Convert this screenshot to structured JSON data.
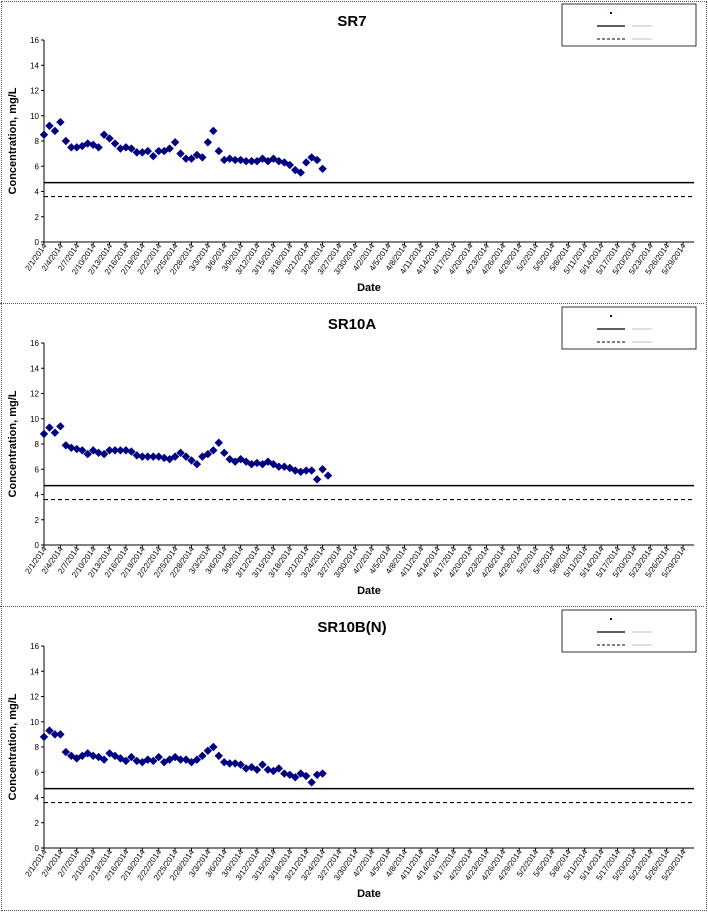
{
  "chart_data": [
    {
      "type": "scatter",
      "title": "SR7",
      "xlabel": "Date",
      "ylabel": "Concentration, mg/L",
      "ylim": [
        0,
        16
      ],
      "yticks": [
        "0",
        "2",
        "4",
        "6",
        "8",
        "10",
        "12",
        "14",
        "16"
      ],
      "xlim": [
        "2/1/2014",
        "5/31/2014"
      ],
      "x_tick_labels": [
        "2/1/2014",
        "2/4/2014",
        "2/7/2014",
        "2/10/2014",
        "2/13/2014",
        "2/16/2014",
        "2/19/2014",
        "2/22/2014",
        "2/25/2014",
        "2/28/2014",
        "3/3/2014",
        "3/6/2014",
        "3/9/2014",
        "3/12/2014",
        "3/15/2014",
        "3/18/2014",
        "3/21/2014",
        "3/24/2014",
        "3/27/2014",
        "3/30/2014",
        "4/2/2014",
        "4/5/2014",
        "4/8/2014",
        "4/11/2014",
        "4/14/2014",
        "4/17/2014",
        "4/20/2014",
        "4/23/2014",
        "4/26/2014",
        "4/29/2014",
        "5/2/2014",
        "5/5/2014",
        "5/8/2014",
        "5/11/2014",
        "5/14/2014",
        "5/17/2014",
        "5/20/2014",
        "5/23/2014",
        "5/26/2014",
        "5/29/2014"
      ],
      "grid": false,
      "legend_position": "top-right",
      "series": [
        {
          "marker": "diamond",
          "color": "#000080",
          "points": [
            {
              "x": "2/1/2014",
              "y": 8.5
            },
            {
              "x": "2/2/2014",
              "y": 9.2
            },
            {
              "x": "2/3/2014",
              "y": 8.8
            },
            {
              "x": "2/4/2014",
              "y": 9.5
            },
            {
              "x": "2/5/2014",
              "y": 8.0
            },
            {
              "x": "2/6/2014",
              "y": 7.5
            },
            {
              "x": "2/7/2014",
              "y": 7.5
            },
            {
              "x": "2/8/2014",
              "y": 7.6
            },
            {
              "x": "2/9/2014",
              "y": 7.8
            },
            {
              "x": "2/10/2014",
              "y": 7.7
            },
            {
              "x": "2/11/2014",
              "y": 7.5
            },
            {
              "x": "2/12/2014",
              "y": 8.5
            },
            {
              "x": "2/13/2014",
              "y": 8.2
            },
            {
              "x": "2/14/2014",
              "y": 7.8
            },
            {
              "x": "2/15/2014",
              "y": 7.4
            },
            {
              "x": "2/16/2014",
              "y": 7.5
            },
            {
              "x": "2/17/2014",
              "y": 7.4
            },
            {
              "x": "2/18/2014",
              "y": 7.1
            },
            {
              "x": "2/19/2014",
              "y": 7.1
            },
            {
              "x": "2/20/2014",
              "y": 7.2
            },
            {
              "x": "2/21/2014",
              "y": 6.8
            },
            {
              "x": "2/22/2014",
              "y": 7.2
            },
            {
              "x": "2/23/2014",
              "y": 7.2
            },
            {
              "x": "2/24/2014",
              "y": 7.4
            },
            {
              "x": "2/25/2014",
              "y": 7.9
            },
            {
              "x": "2/26/2014",
              "y": 7.0
            },
            {
              "x": "2/27/2014",
              "y": 6.6
            },
            {
              "x": "2/28/2014",
              "y": 6.6
            },
            {
              "x": "3/1/2014",
              "y": 6.9
            },
            {
              "x": "3/2/2014",
              "y": 6.7
            },
            {
              "x": "3/3/2014",
              "y": 7.9
            },
            {
              "x": "3/4/2014",
              "y": 8.8
            },
            {
              "x": "3/5/2014",
              "y": 7.2
            },
            {
              "x": "3/6/2014",
              "y": 6.5
            },
            {
              "x": "3/7/2014",
              "y": 6.6
            },
            {
              "x": "3/8/2014",
              "y": 6.5
            },
            {
              "x": "3/9/2014",
              "y": 6.5
            },
            {
              "x": "3/10/2014",
              "y": 6.4
            },
            {
              "x": "3/11/2014",
              "y": 6.4
            },
            {
              "x": "3/12/2014",
              "y": 6.4
            },
            {
              "x": "3/13/2014",
              "y": 6.6
            },
            {
              "x": "3/14/2014",
              "y": 6.4
            },
            {
              "x": "3/15/2014",
              "y": 6.6
            },
            {
              "x": "3/16/2014",
              "y": 6.4
            },
            {
              "x": "3/17/2014",
              "y": 6.3
            },
            {
              "x": "3/18/2014",
              "y": 6.1
            },
            {
              "x": "3/19/2014",
              "y": 5.7
            },
            {
              "x": "3/20/2014",
              "y": 5.5
            },
            {
              "x": "3/21/2014",
              "y": 6.3
            },
            {
              "x": "3/22/2014",
              "y": 6.7
            },
            {
              "x": "3/23/2014",
              "y": 6.5
            },
            {
              "x": "3/24/2014",
              "y": 5.8
            }
          ]
        }
      ],
      "reference_lines": [
        {
          "style": "solid",
          "value": 4.7
        },
        {
          "style": "dashed",
          "value": 3.6
        }
      ]
    },
    {
      "type": "scatter",
      "title": "SR10A",
      "xlabel": "Date",
      "ylabel": "Concentration, mg/L",
      "ylim": [
        0,
        16
      ],
      "yticks": [
        "0",
        "2",
        "4",
        "6",
        "8",
        "10",
        "12",
        "14",
        "16"
      ],
      "xlim": [
        "2/1/2014",
        "5/31/2014"
      ],
      "x_tick_labels": [
        "2/1/2014",
        "2/4/2014",
        "2/7/2014",
        "2/10/2014",
        "2/13/2014",
        "2/16/2014",
        "2/19/2014",
        "2/22/2014",
        "2/25/2014",
        "2/28/2014",
        "3/3/2014",
        "3/6/2014",
        "3/9/2014",
        "3/12/2014",
        "3/15/2014",
        "3/18/2014",
        "3/21/2014",
        "3/24/2014",
        "3/27/2014",
        "3/30/2014",
        "4/2/2014",
        "4/5/2014",
        "4/8/2014",
        "4/11/2014",
        "4/14/2014",
        "4/17/2014",
        "4/20/2014",
        "4/23/2014",
        "4/26/2014",
        "4/29/2014",
        "5/2/2014",
        "5/5/2014",
        "5/8/2014",
        "5/11/2014",
        "5/14/2014",
        "5/17/2014",
        "5/20/2014",
        "5/23/2014",
        "5/26/2014",
        "5/29/2014"
      ],
      "grid": false,
      "legend_position": "top-right",
      "series": [
        {
          "marker": "diamond",
          "color": "#000080",
          "points": [
            {
              "x": "2/1/2014",
              "y": 8.8
            },
            {
              "x": "2/2/2014",
              "y": 9.3
            },
            {
              "x": "2/3/2014",
              "y": 8.9
            },
            {
              "x": "2/4/2014",
              "y": 9.4
            },
            {
              "x": "2/5/2014",
              "y": 7.9
            },
            {
              "x": "2/6/2014",
              "y": 7.7
            },
            {
              "x": "2/7/2014",
              "y": 7.6
            },
            {
              "x": "2/8/2014",
              "y": 7.5
            },
            {
              "x": "2/9/2014",
              "y": 7.2
            },
            {
              "x": "2/10/2014",
              "y": 7.5
            },
            {
              "x": "2/11/2014",
              "y": 7.3
            },
            {
              "x": "2/12/2014",
              "y": 7.2
            },
            {
              "x": "2/13/2014",
              "y": 7.5
            },
            {
              "x": "2/14/2014",
              "y": 7.5
            },
            {
              "x": "2/15/2014",
              "y": 7.5
            },
            {
              "x": "2/16/2014",
              "y": 7.5
            },
            {
              "x": "2/17/2014",
              "y": 7.4
            },
            {
              "x": "2/18/2014",
              "y": 7.1
            },
            {
              "x": "2/19/2014",
              "y": 7.0
            },
            {
              "x": "2/20/2014",
              "y": 7.0
            },
            {
              "x": "2/21/2014",
              "y": 7.0
            },
            {
              "x": "2/22/2014",
              "y": 7.0
            },
            {
              "x": "2/23/2014",
              "y": 6.9
            },
            {
              "x": "2/24/2014",
              "y": 6.8
            },
            {
              "x": "2/25/2014",
              "y": 7.0
            },
            {
              "x": "2/26/2014",
              "y": 7.3
            },
            {
              "x": "2/27/2014",
              "y": 7.0
            },
            {
              "x": "2/28/2014",
              "y": 6.7
            },
            {
              "x": "3/1/2014",
              "y": 6.4
            },
            {
              "x": "3/2/2014",
              "y": 7.0
            },
            {
              "x": "3/3/2014",
              "y": 7.2
            },
            {
              "x": "3/4/2014",
              "y": 7.5
            },
            {
              "x": "3/5/2014",
              "y": 8.1
            },
            {
              "x": "3/6/2014",
              "y": 7.3
            },
            {
              "x": "3/7/2014",
              "y": 6.8
            },
            {
              "x": "3/8/2014",
              "y": 6.6
            },
            {
              "x": "3/9/2014",
              "y": 6.8
            },
            {
              "x": "3/10/2014",
              "y": 6.6
            },
            {
              "x": "3/11/2014",
              "y": 6.4
            },
            {
              "x": "3/12/2014",
              "y": 6.5
            },
            {
              "x": "3/13/2014",
              "y": 6.4
            },
            {
              "x": "3/14/2014",
              "y": 6.6
            },
            {
              "x": "3/15/2014",
              "y": 6.4
            },
            {
              "x": "3/16/2014",
              "y": 6.2
            },
            {
              "x": "3/17/2014",
              "y": 6.2
            },
            {
              "x": "3/18/2014",
              "y": 6.1
            },
            {
              "x": "3/19/2014",
              "y": 5.9
            },
            {
              "x": "3/20/2014",
              "y": 5.8
            },
            {
              "x": "3/21/2014",
              "y": 5.9
            },
            {
              "x": "3/22/2014",
              "y": 5.9
            },
            {
              "x": "3/23/2014",
              "y": 5.2
            },
            {
              "x": "3/24/2014",
              "y": 6.0
            },
            {
              "x": "3/25/2014",
              "y": 5.5
            }
          ]
        }
      ],
      "reference_lines": [
        {
          "style": "solid",
          "value": 4.7
        },
        {
          "style": "dashed",
          "value": 3.6
        }
      ]
    },
    {
      "type": "scatter",
      "title": "SR10B(N)",
      "xlabel": "Date",
      "ylabel": "Concentration, mg/L",
      "ylim": [
        0,
        16
      ],
      "yticks": [
        "0",
        "2",
        "4",
        "6",
        "8",
        "10",
        "12",
        "14",
        "16"
      ],
      "xlim": [
        "2/1/2014",
        "5/31/2014"
      ],
      "x_tick_labels": [
        "2/1/2014",
        "2/4/2014",
        "2/7/2014",
        "2/10/2014",
        "2/13/2014",
        "2/16/2014",
        "2/19/2014",
        "2/22/2014",
        "2/25/2014",
        "2/28/2014",
        "3/3/2014",
        "3/6/2014",
        "3/9/2014",
        "3/12/2014",
        "3/15/2014",
        "3/18/2014",
        "3/21/2014",
        "3/24/2014",
        "3/27/2014",
        "3/30/2014",
        "4/2/2014",
        "4/5/2014",
        "4/8/2014",
        "4/11/2014",
        "4/14/2014",
        "4/17/2014",
        "4/20/2014",
        "4/23/2014",
        "4/26/2014",
        "4/29/2014",
        "5/2/2014",
        "5/5/2014",
        "5/8/2014",
        "5/11/2014",
        "5/14/2014",
        "5/17/2014",
        "5/20/2014",
        "5/23/2014",
        "5/26/2014",
        "5/29/2014"
      ],
      "grid": false,
      "legend_position": "top-right",
      "series": [
        {
          "marker": "diamond",
          "color": "#000080",
          "points": [
            {
              "x": "2/1/2014",
              "y": 8.8
            },
            {
              "x": "2/2/2014",
              "y": 9.3
            },
            {
              "x": "2/3/2014",
              "y": 9.0
            },
            {
              "x": "2/4/2014",
              "y": 9.0
            },
            {
              "x": "2/5/2014",
              "y": 7.6
            },
            {
              "x": "2/6/2014",
              "y": 7.3
            },
            {
              "x": "2/7/2014",
              "y": 7.1
            },
            {
              "x": "2/8/2014",
              "y": 7.3
            },
            {
              "x": "2/9/2014",
              "y": 7.5
            },
            {
              "x": "2/10/2014",
              "y": 7.3
            },
            {
              "x": "2/11/2014",
              "y": 7.2
            },
            {
              "x": "2/12/2014",
              "y": 7.0
            },
            {
              "x": "2/13/2014",
              "y": 7.5
            },
            {
              "x": "2/14/2014",
              "y": 7.3
            },
            {
              "x": "2/15/2014",
              "y": 7.1
            },
            {
              "x": "2/16/2014",
              "y": 6.9
            },
            {
              "x": "2/17/2014",
              "y": 7.2
            },
            {
              "x": "2/18/2014",
              "y": 6.9
            },
            {
              "x": "2/19/2014",
              "y": 6.8
            },
            {
              "x": "2/20/2014",
              "y": 7.0
            },
            {
              "x": "2/21/2014",
              "y": 6.9
            },
            {
              "x": "2/22/2014",
              "y": 7.2
            },
            {
              "x": "2/23/2014",
              "y": 6.8
            },
            {
              "x": "2/24/2014",
              "y": 7.0
            },
            {
              "x": "2/25/2014",
              "y": 7.2
            },
            {
              "x": "2/26/2014",
              "y": 7.0
            },
            {
              "x": "2/27/2014",
              "y": 7.0
            },
            {
              "x": "2/28/2014",
              "y": 6.8
            },
            {
              "x": "3/1/2014",
              "y": 7.0
            },
            {
              "x": "3/2/2014",
              "y": 7.3
            },
            {
              "x": "3/3/2014",
              "y": 7.7
            },
            {
              "x": "3/4/2014",
              "y": 8.0
            },
            {
              "x": "3/5/2014",
              "y": 7.3
            },
            {
              "x": "3/6/2014",
              "y": 6.8
            },
            {
              "x": "3/7/2014",
              "y": 6.7
            },
            {
              "x": "3/8/2014",
              "y": 6.7
            },
            {
              "x": "3/9/2014",
              "y": 6.6
            },
            {
              "x": "3/10/2014",
              "y": 6.3
            },
            {
              "x": "3/11/2014",
              "y": 6.4
            },
            {
              "x": "3/12/2014",
              "y": 6.2
            },
            {
              "x": "3/13/2014",
              "y": 6.6
            },
            {
              "x": "3/14/2014",
              "y": 6.2
            },
            {
              "x": "3/15/2014",
              "y": 6.1
            },
            {
              "x": "3/16/2014",
              "y": 6.3
            },
            {
              "x": "3/17/2014",
              "y": 5.9
            },
            {
              "x": "3/18/2014",
              "y": 5.8
            },
            {
              "x": "3/19/2014",
              "y": 5.6
            },
            {
              "x": "3/20/2014",
              "y": 5.9
            },
            {
              "x": "3/21/2014",
              "y": 5.7
            },
            {
              "x": "3/22/2014",
              "y": 5.2
            },
            {
              "x": "3/23/2014",
              "y": 5.8
            },
            {
              "x": "3/24/2014",
              "y": 5.9
            }
          ]
        }
      ],
      "reference_lines": [
        {
          "style": "solid",
          "value": 4.7
        },
        {
          "style": "dashed",
          "value": 3.6
        }
      ]
    }
  ]
}
